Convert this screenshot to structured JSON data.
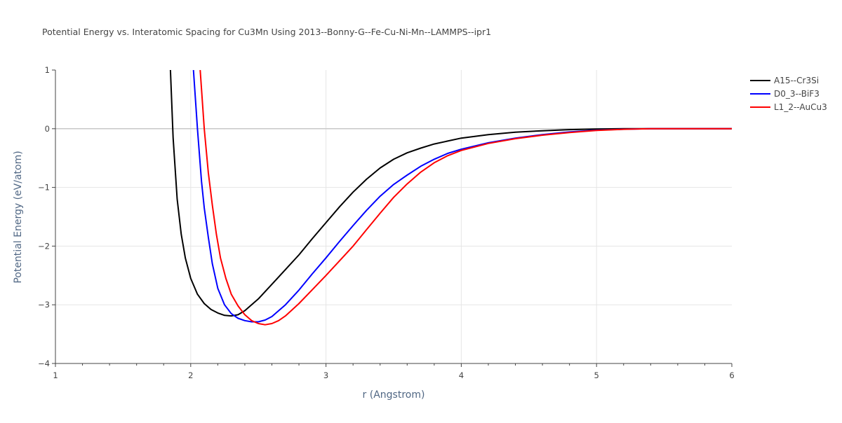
{
  "chart_data": {
    "type": "line",
    "title": "Potential Energy vs. Interatomic Spacing for Cu3Mn Using 2013--Bonny-G--Fe-Cu-Ni-Mn--LAMMPS--ipr1",
    "xlabel": "r (Angstrom)",
    "ylabel": "Potential Energy (eV/atom)",
    "xlim": [
      1,
      6
    ],
    "ylim": [
      -4,
      1
    ],
    "x_ticks": [
      "1",
      "2",
      "3",
      "4",
      "5",
      "6"
    ],
    "y_ticks": [
      "1",
      "0",
      "−1",
      "−2",
      "−3",
      "−4"
    ],
    "grid": true,
    "legend_position": "top-right",
    "series": [
      {
        "name": "A15--Cr3Si",
        "color": "#000000",
        "points": [
          [
            1.85,
            1.0
          ],
          [
            1.87,
            -0.15
          ],
          [
            1.9,
            -1.2
          ],
          [
            1.93,
            -1.8
          ],
          [
            1.96,
            -2.2
          ],
          [
            2.0,
            -2.55
          ],
          [
            2.05,
            -2.82
          ],
          [
            2.1,
            -2.98
          ],
          [
            2.15,
            -3.08
          ],
          [
            2.2,
            -3.14
          ],
          [
            2.25,
            -3.18
          ],
          [
            2.3,
            -3.19
          ],
          [
            2.35,
            -3.17
          ],
          [
            2.4,
            -3.1
          ],
          [
            2.5,
            -2.9
          ],
          [
            2.6,
            -2.65
          ],
          [
            2.7,
            -2.4
          ],
          [
            2.8,
            -2.15
          ],
          [
            2.9,
            -1.87
          ],
          [
            3.0,
            -1.6
          ],
          [
            3.1,
            -1.33
          ],
          [
            3.2,
            -1.08
          ],
          [
            3.3,
            -0.86
          ],
          [
            3.4,
            -0.67
          ],
          [
            3.5,
            -0.52
          ],
          [
            3.6,
            -0.41
          ],
          [
            3.7,
            -0.33
          ],
          [
            3.8,
            -0.26
          ],
          [
            3.9,
            -0.21
          ],
          [
            4.0,
            -0.16
          ],
          [
            4.2,
            -0.1
          ],
          [
            4.4,
            -0.06
          ],
          [
            4.6,
            -0.035
          ],
          [
            4.8,
            -0.015
          ],
          [
            5.0,
            -0.005
          ],
          [
            5.2,
            0.0
          ],
          [
            6.0,
            0.0
          ]
        ]
      },
      {
        "name": "D0_3--BiF3",
        "color": "#0000ff",
        "points": [
          [
            2.02,
            1.0
          ],
          [
            2.05,
            0.0
          ],
          [
            2.08,
            -0.9
          ],
          [
            2.1,
            -1.35
          ],
          [
            2.13,
            -1.85
          ],
          [
            2.16,
            -2.3
          ],
          [
            2.2,
            -2.72
          ],
          [
            2.25,
            -3.0
          ],
          [
            2.3,
            -3.15
          ],
          [
            2.35,
            -3.23
          ],
          [
            2.4,
            -3.27
          ],
          [
            2.45,
            -3.29
          ],
          [
            2.5,
            -3.29
          ],
          [
            2.55,
            -3.26
          ],
          [
            2.6,
            -3.2
          ],
          [
            2.7,
            -3.0
          ],
          [
            2.8,
            -2.75
          ],
          [
            2.9,
            -2.47
          ],
          [
            3.0,
            -2.2
          ],
          [
            3.1,
            -1.92
          ],
          [
            3.2,
            -1.65
          ],
          [
            3.3,
            -1.39
          ],
          [
            3.4,
            -1.15
          ],
          [
            3.5,
            -0.95
          ],
          [
            3.6,
            -0.79
          ],
          [
            3.7,
            -0.64
          ],
          [
            3.8,
            -0.52
          ],
          [
            3.9,
            -0.42
          ],
          [
            4.0,
            -0.35
          ],
          [
            4.2,
            -0.24
          ],
          [
            4.4,
            -0.16
          ],
          [
            4.6,
            -0.1
          ],
          [
            4.8,
            -0.055
          ],
          [
            5.0,
            -0.025
          ],
          [
            5.2,
            -0.008
          ],
          [
            5.4,
            0.0
          ],
          [
            6.0,
            0.0
          ]
        ]
      },
      {
        "name": "L1_2--AuCu3",
        "color": "#ff0000",
        "points": [
          [
            2.07,
            1.0
          ],
          [
            2.1,
            0.0
          ],
          [
            2.13,
            -0.75
          ],
          [
            2.16,
            -1.3
          ],
          [
            2.19,
            -1.8
          ],
          [
            2.22,
            -2.2
          ],
          [
            2.26,
            -2.55
          ],
          [
            2.3,
            -2.82
          ],
          [
            2.35,
            -3.02
          ],
          [
            2.4,
            -3.17
          ],
          [
            2.45,
            -3.27
          ],
          [
            2.5,
            -3.32
          ],
          [
            2.55,
            -3.34
          ],
          [
            2.6,
            -3.32
          ],
          [
            2.65,
            -3.27
          ],
          [
            2.7,
            -3.19
          ],
          [
            2.8,
            -2.98
          ],
          [
            2.9,
            -2.74
          ],
          [
            3.0,
            -2.5
          ],
          [
            3.1,
            -2.25
          ],
          [
            3.2,
            -2.0
          ],
          [
            3.3,
            -1.72
          ],
          [
            3.4,
            -1.44
          ],
          [
            3.5,
            -1.17
          ],
          [
            3.6,
            -0.94
          ],
          [
            3.7,
            -0.74
          ],
          [
            3.8,
            -0.58
          ],
          [
            3.9,
            -0.46
          ],
          [
            4.0,
            -0.37
          ],
          [
            4.2,
            -0.25
          ],
          [
            4.4,
            -0.17
          ],
          [
            4.6,
            -0.11
          ],
          [
            4.8,
            -0.065
          ],
          [
            5.0,
            -0.03
          ],
          [
            5.2,
            -0.01
          ],
          [
            5.4,
            0.0
          ],
          [
            6.0,
            0.0
          ]
        ]
      }
    ]
  }
}
